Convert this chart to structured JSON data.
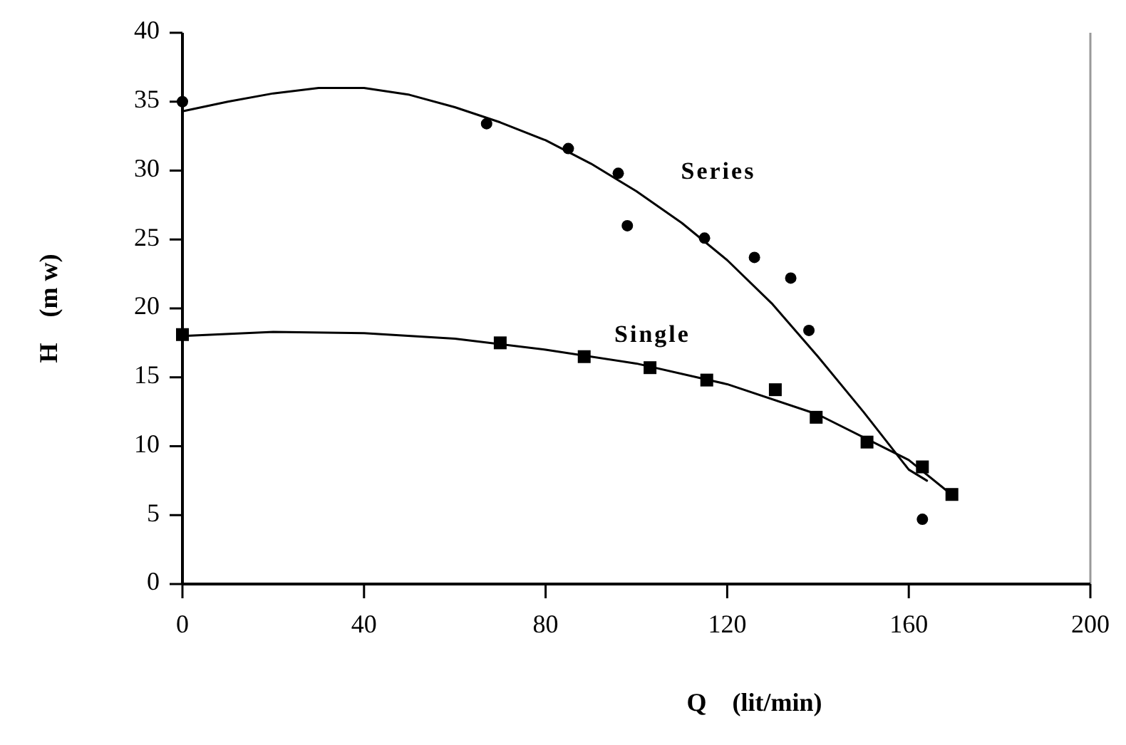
{
  "chart_data": {
    "type": "scatter",
    "xlabel": "Q    (lit/min)",
    "ylabel": "H    (m w)",
    "xlim": [
      0,
      200
    ],
    "ylim": [
      0,
      40
    ],
    "xticks": [
      0,
      40,
      80,
      120,
      160,
      200
    ],
    "yticks": [
      0,
      5,
      10,
      15,
      20,
      25,
      30,
      35,
      40
    ],
    "grid": false,
    "series": [
      {
        "name": "Series",
        "marker": "circle",
        "color": "#000000",
        "x": [
          0,
          67,
          85,
          96,
          98,
          115,
          126,
          134,
          138,
          163
        ],
        "values": [
          35.0,
          33.4,
          31.6,
          29.8,
          26.0,
          25.1,
          23.7,
          22.2,
          18.4,
          4.7
        ]
      },
      {
        "name": "Single",
        "marker": "square",
        "color": "#000000",
        "x": [
          0,
          70,
          88.5,
          103,
          115.5,
          130.6,
          139.6,
          150.8,
          163,
          169.5
        ],
        "values": [
          18.1,
          17.5,
          16.5,
          15.7,
          14.8,
          14.1,
          12.1,
          10.3,
          8.5,
          6.5
        ]
      },
      {
        "type": "line",
        "color": "#000000",
        "x": [
          0,
          10,
          20,
          30,
          40,
          50,
          60,
          70,
          80,
          90,
          100,
          110,
          120,
          130,
          140,
          150,
          160,
          164
        ],
        "values": [
          34.3,
          35,
          35.6,
          36,
          36,
          35.5,
          34.6,
          33.5,
          32.2,
          30.5,
          28.5,
          26.2,
          23.5,
          20.3,
          16.5,
          12.5,
          8.3,
          7.5
        ]
      },
      {
        "type": "line",
        "color": "#000000",
        "x": [
          0,
          20,
          40,
          60,
          80,
          100,
          120,
          140,
          160,
          169
        ],
        "values": [
          18,
          18.3,
          18.2,
          17.8,
          17,
          16,
          14.5,
          12.3,
          9,
          6.6
        ]
      }
    ]
  }
}
